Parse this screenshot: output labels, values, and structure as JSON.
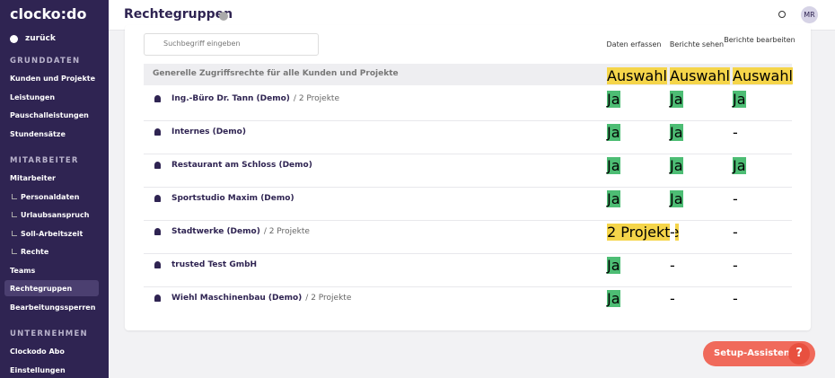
{
  "sidebar": {
    "logo": "clocko:do",
    "back": "zurück",
    "sections": [
      {
        "title": "GRUNDDATEN",
        "items": [
          {
            "label": "Kunden und Projekte"
          },
          {
            "label": "Leistungen"
          },
          {
            "label": "Pauschalleistungen"
          },
          {
            "label": "Stundensätze"
          }
        ]
      },
      {
        "title": "MITARBEITER",
        "items": [
          {
            "label": "Mitarbeiter"
          },
          {
            "label": "Personaldaten",
            "indent": true
          },
          {
            "label": "Urlaubsanspruch",
            "indent": true
          },
          {
            "label": "Soll-Arbeitszeit",
            "indent": true
          },
          {
            "label": "Rechte",
            "indent": true
          },
          {
            "label": "Teams"
          },
          {
            "label": "Rechtegruppen",
            "active": true
          },
          {
            "label": "Bearbeitungssperren"
          }
        ]
      },
      {
        "title": "UNTERNEHMEN",
        "items": [
          {
            "label": "Clockodo Abo"
          },
          {
            "label": "Einstellungen"
          }
        ]
      }
    ]
  },
  "header": {
    "title": "Rechtegruppen",
    "avatar": "MR"
  },
  "search": {
    "placeholder": "Suchbegriff eingeben"
  },
  "columns": [
    "Daten erfassen",
    "Berichte sehen",
    "Berichte bearbeiten"
  ],
  "general": {
    "label": "Generelle Zugriffsrechte für alle Kunden und Projekte",
    "cells": [
      {
        "text": "Auswahl",
        "color": "#f5d54a"
      },
      {
        "text": "Auswahl",
        "color": "#f5d54a"
      },
      {
        "text": "Auswahl",
        "color": "#f5d54a"
      }
    ]
  },
  "rows": [
    {
      "name": "Ing.-Büro Dr. Tann (Demo)",
      "projects": "/ 2 Projekte",
      "cells": [
        {
          "text": "Ja",
          "color": "#4dbd74"
        },
        {
          "text": "Ja",
          "color": "#4dbd74"
        },
        {
          "text": "Ja",
          "color": "#4dbd74"
        }
      ]
    },
    {
      "name": "Internes (Demo)",
      "cells": [
        {
          "text": "Ja",
          "color": "#4dbd74"
        },
        {
          "text": "Ja",
          "color": "#4dbd74"
        },
        {
          "text": "-",
          "color": "#ffffff"
        }
      ]
    },
    {
      "name": "Restaurant am Schloss (Demo)",
      "cells": [
        {
          "text": "Ja",
          "color": "#4dbd74"
        },
        {
          "text": "Ja",
          "color": "#4dbd74"
        },
        {
          "text": "Ja",
          "color": "#4dbd74"
        }
      ]
    },
    {
      "name": "Sportstudio Maxim (Demo)",
      "cells": [
        {
          "text": "Ja",
          "color": "#4dbd74"
        },
        {
          "text": "Ja",
          "color": "#4dbd74"
        },
        {
          "text": "-",
          "color": "#ffffff"
        }
      ]
    },
    {
      "name": "Stadtwerke (Demo)",
      "projects": "/ 2 Projekte",
      "cells": [
        {
          "text": "2 Projekte",
          "color": "#f5d54a"
        },
        {
          "text": "-",
          "color": "#ffffff"
        },
        {
          "text": "-",
          "color": "#ffffff"
        }
      ]
    },
    {
      "name": "trusted Test GmbH",
      "cells": [
        {
          "text": "Ja",
          "color": "#4dbd74"
        },
        {
          "text": "-",
          "color": "#ffffff"
        },
        {
          "text": "-",
          "color": "#ffffff"
        }
      ]
    },
    {
      "name": "Wiehl Maschinenbau (Demo)",
      "projects": "/ 2 Projekte",
      "cells": [
        {
          "text": "Ja",
          "color": "#4dbd74"
        },
        {
          "text": "-",
          "color": "#ffffff"
        },
        {
          "text": "-",
          "color": "#ffffff"
        }
      ]
    }
  ],
  "assistant": {
    "label": "Setup-Assistent",
    "help": "?"
  }
}
